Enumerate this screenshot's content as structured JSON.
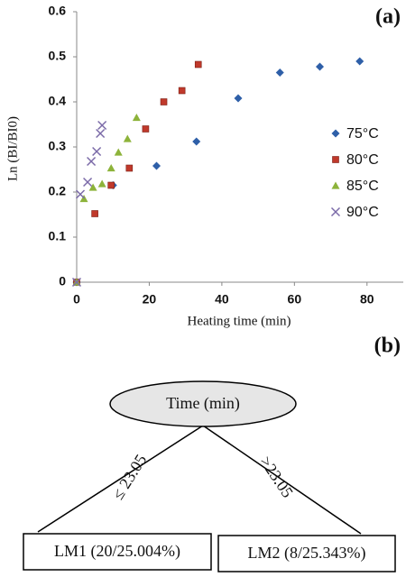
{
  "chart_data": {
    "type": "scatter",
    "label": "(a)",
    "x_label": "Heating time (min)",
    "y_label": "Ln (BI/BI0)",
    "xlim": [
      0,
      90
    ],
    "ylim": [
      0,
      0.6
    ],
    "xticks": [
      0,
      20,
      40,
      60,
      80
    ],
    "yticks": [
      0,
      0.1,
      0.2,
      0.3,
      0.4,
      0.5,
      0.6
    ],
    "series": [
      {
        "name": "75°C",
        "color": "#2e5fa8",
        "marker": "diamond",
        "x": [
          0,
          10,
          22,
          33,
          44.5,
          56,
          67,
          78
        ],
        "values": [
          0,
          0.215,
          0.258,
          0.312,
          0.408,
          0.465,
          0.478,
          0.49
        ]
      },
      {
        "name": "80°C",
        "color": "#c0392b",
        "marker": "square",
        "x": [
          0,
          5,
          9.5,
          14.5,
          19,
          24,
          29,
          33.5
        ],
        "values": [
          0,
          0.152,
          0.215,
          0.253,
          0.34,
          0.4,
          0.425,
          0.483
        ]
      },
      {
        "name": "85°C",
        "color": "#8db33a",
        "marker": "triangle",
        "x": [
          0,
          2,
          4.5,
          7,
          9.5,
          11.5,
          14,
          16.5
        ],
        "values": [
          0,
          0.185,
          0.21,
          0.218,
          0.253,
          0.288,
          0.318,
          0.365
        ]
      },
      {
        "name": "90°C",
        "color": "#7b6aa8",
        "marker": "cross",
        "x": [
          0,
          1,
          3,
          4,
          5.5,
          6.5,
          7
        ],
        "values": [
          0,
          0.195,
          0.222,
          0.268,
          0.29,
          0.33,
          0.348
        ]
      }
    ]
  },
  "tree": {
    "label": "(b)",
    "root": "Time (min)",
    "left_edge": "≤ 23.05",
    "right_edge": ">23.05",
    "left_leaf": "LM1 (20/25.004%)",
    "right_leaf": "LM2 (8/25.343%)"
  }
}
